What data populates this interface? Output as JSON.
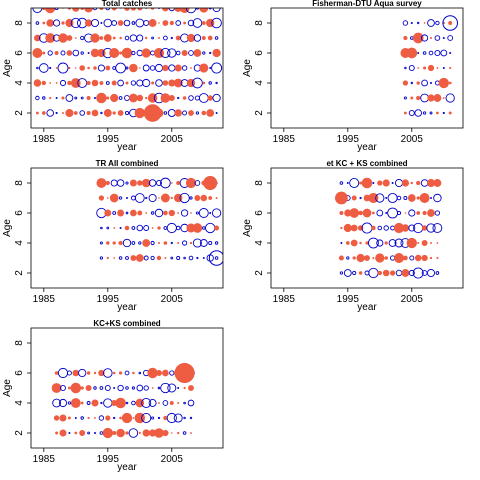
{
  "colors": {
    "positive": "#EE5C42",
    "negative": "#0000CC",
    "axis": "#000000"
  },
  "chart_data": [
    {
      "type": "scatter",
      "title": "Total catches",
      "xlabel": "year",
      "ylabel": "Age",
      "xlim": [
        1983,
        2013
      ],
      "ylim": [
        1,
        9
      ],
      "xticks": [
        1985,
        1995,
        2005
      ],
      "yticks": [
        2,
        4,
        6,
        8
      ],
      "years": [
        1984,
        2012
      ],
      "ages": [
        2,
        9
      ],
      "seed": 11,
      "emphasis": [
        {
          "x": 2002,
          "y": 2,
          "r": 1.4,
          "sign": 1
        }
      ]
    },
    {
      "type": "scatter",
      "title": "Fisherman-DTU Aqua survey",
      "xlabel": "year",
      "ylabel": "Age",
      "xlim": [
        1983,
        2013
      ],
      "ylim": [
        1,
        9
      ],
      "xticks": [
        1985,
        1995,
        2005
      ],
      "yticks": [
        2,
        4,
        6,
        8
      ],
      "years": [
        2004,
        2011
      ],
      "ages": [
        2,
        8
      ],
      "seed": 23,
      "emphasis": [
        {
          "x": 2011,
          "y": 8,
          "r": 1.2,
          "sign": -1
        }
      ]
    },
    {
      "type": "scatter",
      "title": "TR All combined",
      "xlabel": "year",
      "ylabel": "Age",
      "xlim": [
        1983,
        2013
      ],
      "ylim": [
        1,
        9
      ],
      "xticks": [
        1985,
        1995,
        2005
      ],
      "yticks": [
        2,
        4,
        6,
        8
      ],
      "years": [
        1994,
        2012
      ],
      "ages": [
        3,
        8
      ],
      "seed": 37,
      "emphasis": [
        {
          "x": 2012,
          "y": 3,
          "r": 1.2,
          "sign": -1
        },
        {
          "x": 2011,
          "y": 8,
          "r": 1.1,
          "sign": 1
        }
      ]
    },
    {
      "type": "scatter",
      "title": "et KC + KS combined",
      "xlabel": "year",
      "ylabel": "Age",
      "xlim": [
        1983,
        2013
      ],
      "ylim": [
        1,
        9
      ],
      "xticks": [
        1985,
        1995,
        2005
      ],
      "yticks": [
        2,
        4,
        6,
        8
      ],
      "years": [
        1994,
        2009
      ],
      "ages": [
        2,
        8
      ],
      "seed": 51,
      "emphasis": [
        {
          "x": 1994,
          "y": 7,
          "r": 1.0,
          "sign": 1
        }
      ]
    },
    {
      "type": "scatter",
      "title": "KC+KS combined",
      "xlabel": "year",
      "ylabel": "Age",
      "xlim": [
        1983,
        2013
      ],
      "ylim": [
        1,
        9
      ],
      "xticks": [
        1985,
        1995,
        2005
      ],
      "yticks": [
        2,
        4,
        6,
        8
      ],
      "years": [
        1987,
        2008
      ],
      "ages": [
        2,
        6
      ],
      "seed": 67,
      "emphasis": [
        {
          "x": 2007,
          "y": 6,
          "r": 1.6,
          "sign": 1
        }
      ]
    }
  ]
}
